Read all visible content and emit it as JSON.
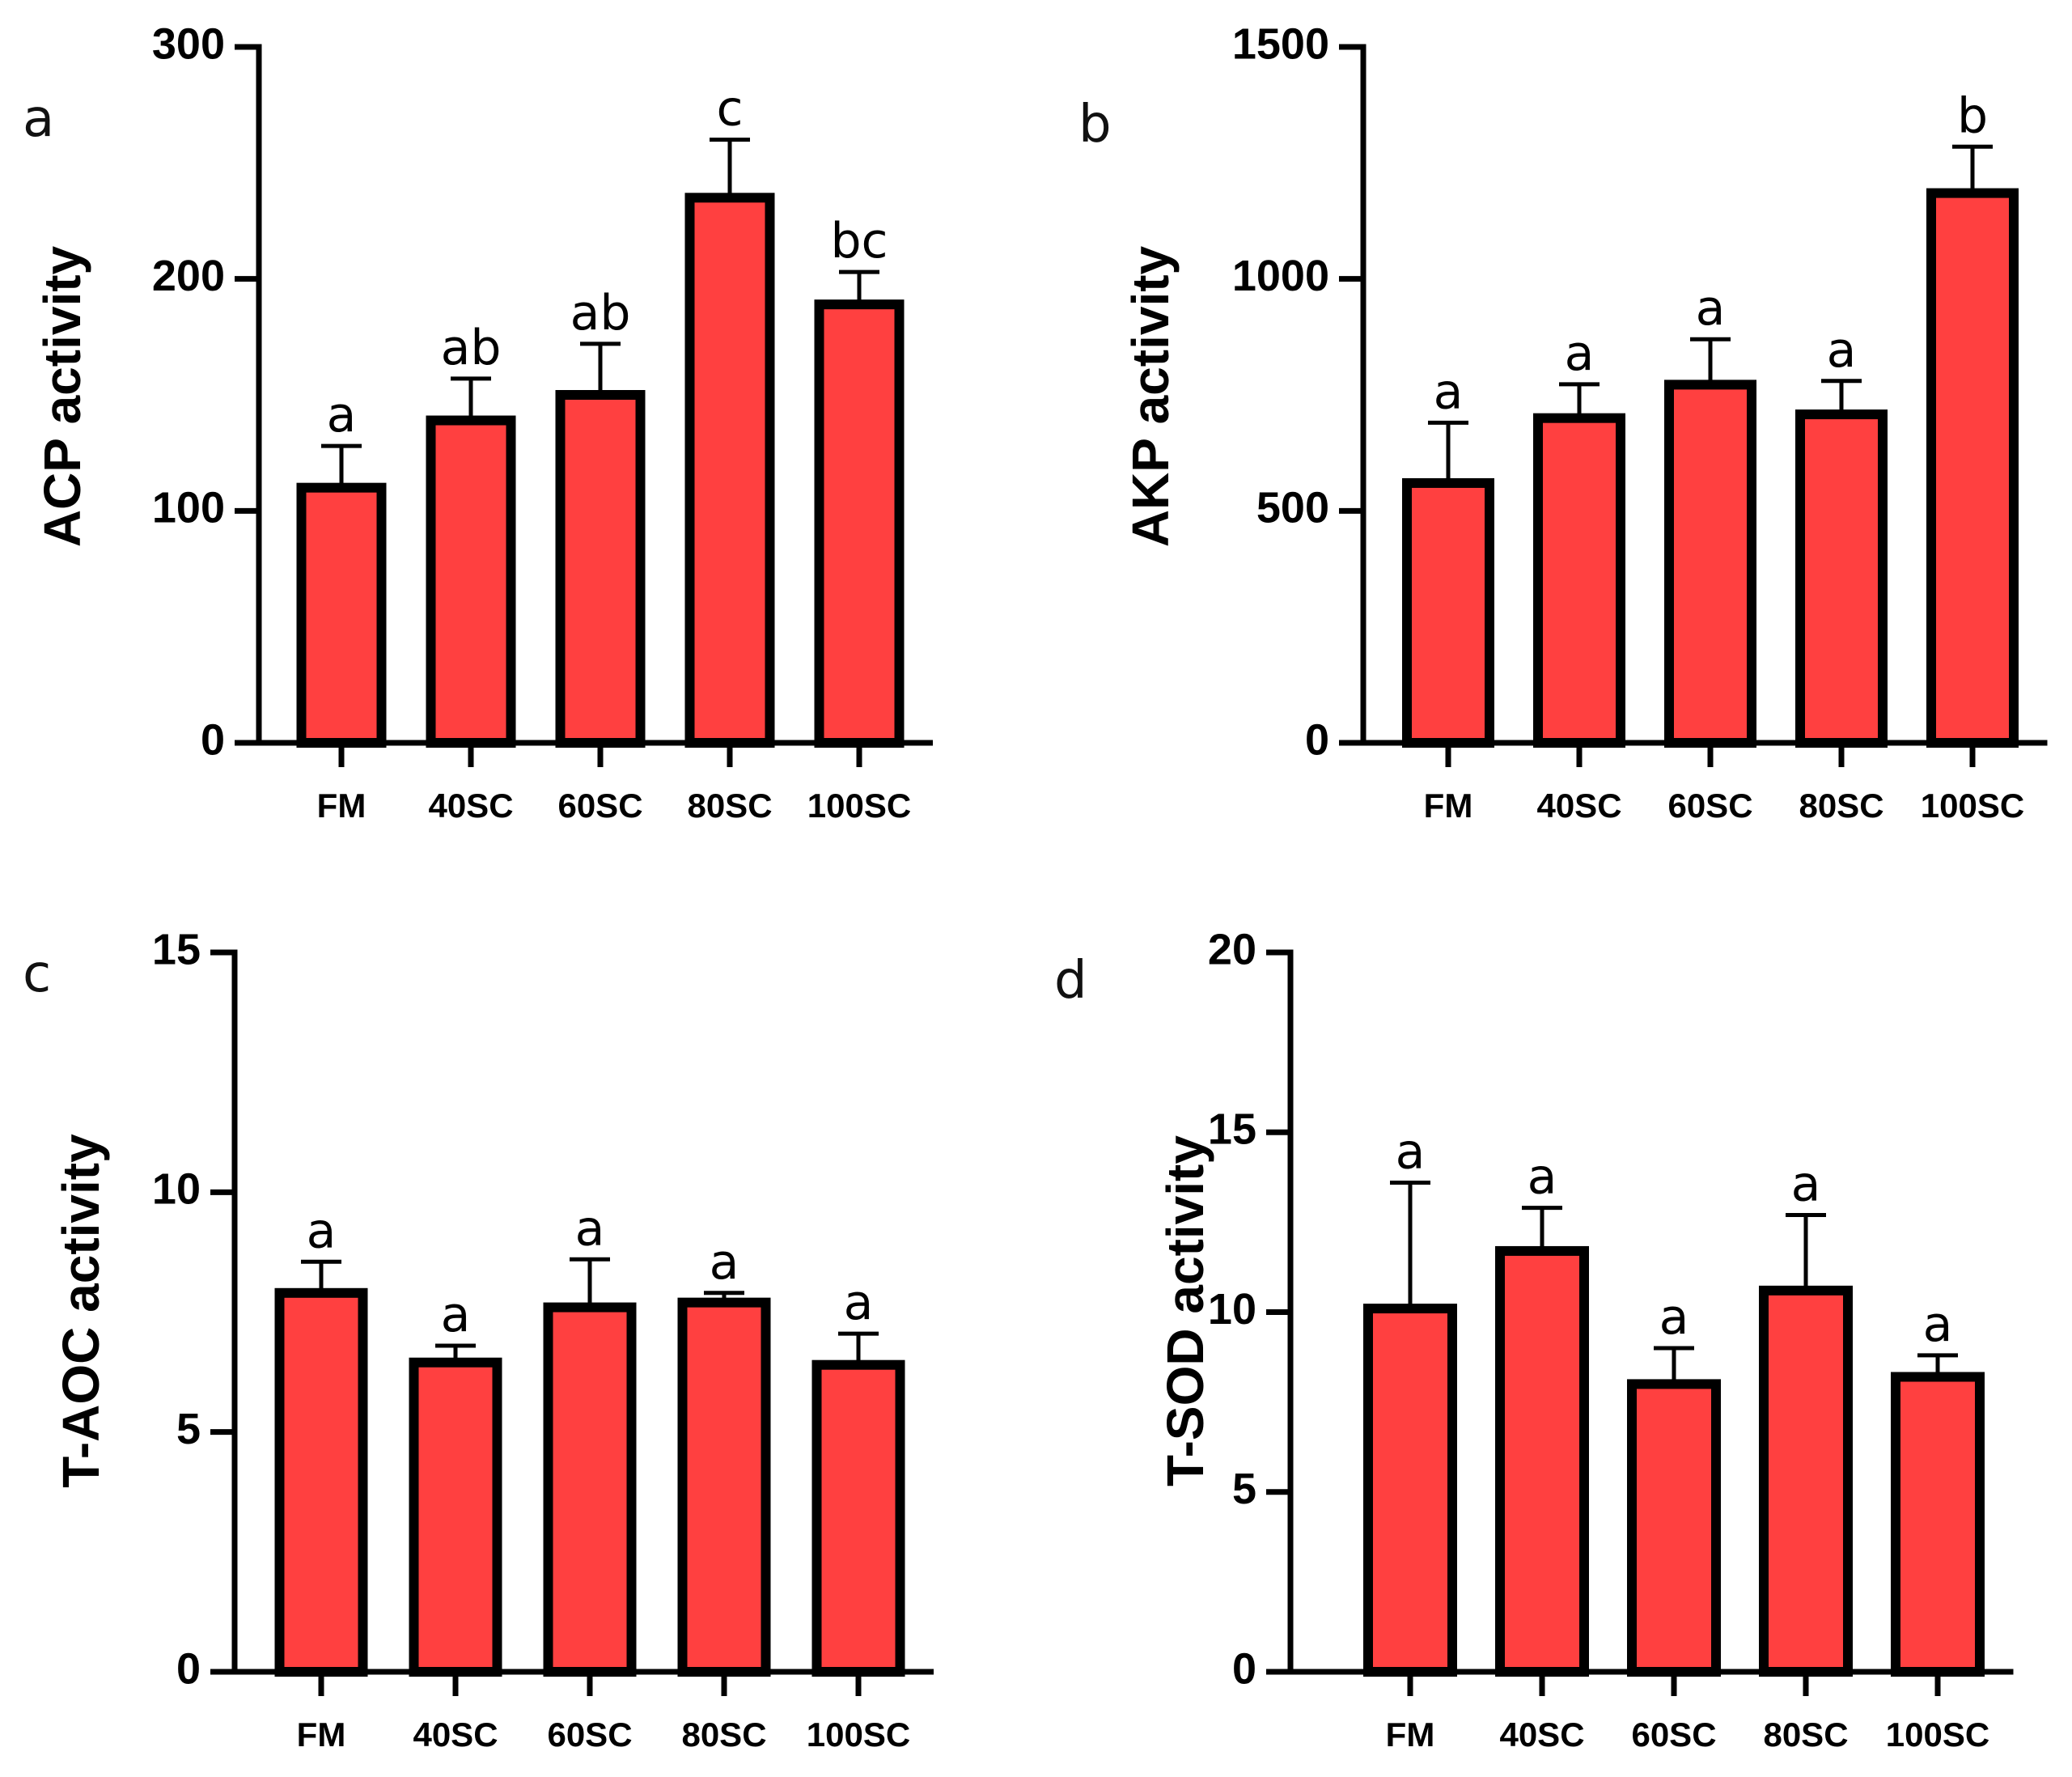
{
  "figure": {
    "bar_fill": "#FF4040",
    "bar_stroke": "#000000"
  },
  "chart_data": [
    {
      "panel": "a",
      "type": "bar",
      "title": "",
      "xlabel": "",
      "ylabel": "ACP activity",
      "ylim": [
        0,
        300
      ],
      "yticks": [
        0,
        100,
        200,
        300
      ],
      "categories": [
        "FM",
        "40SC",
        "60SC",
        "80SC",
        "100SC"
      ],
      "values": [
        110,
        139,
        150,
        235,
        189
      ],
      "errors": [
        18,
        18,
        22,
        25,
        14
      ],
      "significance": [
        "a",
        "ab",
        "ab",
        "c",
        "bc"
      ]
    },
    {
      "panel": "b",
      "type": "bar",
      "title": "",
      "xlabel": "",
      "ylabel": "AKP activity",
      "ylim": [
        0,
        1500
      ],
      "yticks": [
        0,
        500,
        1000,
        1500
      ],
      "categories": [
        "FM",
        "40SC",
        "60SC",
        "80SC",
        "100SC"
      ],
      "values": [
        560,
        700,
        772,
        708,
        1185
      ],
      "errors": [
        130,
        73,
        98,
        72,
        100
      ],
      "significance": [
        "a",
        "a",
        "a",
        "a",
        "b"
      ]
    },
    {
      "panel": "c",
      "type": "bar",
      "title": "",
      "xlabel": "",
      "ylabel": "T-AOC activity",
      "ylim": [
        0,
        15
      ],
      "yticks": [
        0,
        5,
        10,
        15
      ],
      "categories": [
        "FM",
        "40SC",
        "60SC",
        "80SC",
        "100SC"
      ],
      "values": [
        7.9,
        6.45,
        7.6,
        7.7,
        6.4
      ],
      "errors": [
        0.65,
        0.35,
        1.0,
        0.2,
        0.65
      ],
      "significance": [
        "a",
        "a",
        "a",
        "a",
        "a"
      ]
    },
    {
      "panel": "d",
      "type": "bar",
      "title": "",
      "xlabel": "",
      "ylabel": "T-SOD activity",
      "ylim": [
        0,
        20
      ],
      "yticks": [
        0,
        5,
        10,
        15,
        20
      ],
      "categories": [
        "FM",
        "40SC",
        "60SC",
        "80SC",
        "100SC"
      ],
      "values": [
        10.1,
        11.7,
        8.0,
        10.6,
        8.2
      ],
      "errors": [
        3.5,
        1.2,
        1.0,
        2.1,
        0.6
      ],
      "significance": [
        "a",
        "a",
        "a",
        "a",
        "a"
      ]
    }
  ]
}
